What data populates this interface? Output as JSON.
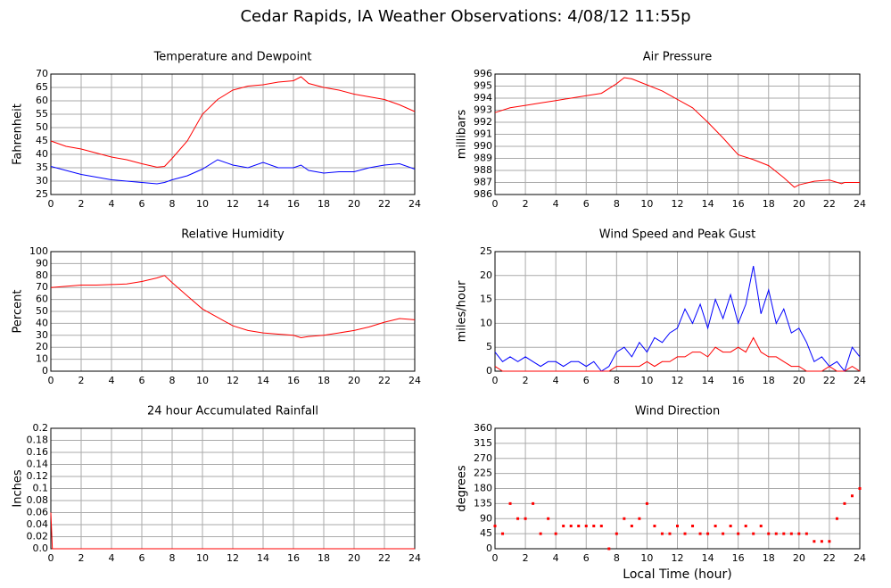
{
  "title": "Cedar Rapids, IA Weather Observations: 4/08/12 11:55p",
  "chart_data": [
    {
      "type": "line",
      "title": "Temperature and Dewpoint",
      "ylabel": "Fahrenheit",
      "x": [
        0,
        1,
        2,
        3,
        4,
        5,
        6,
        7,
        7.5,
        8,
        9,
        10,
        11,
        12,
        13,
        14,
        15,
        16,
        16.5,
        17,
        18,
        19,
        20,
        21,
        22,
        23,
        24
      ],
      "series": [
        {
          "color": "#ff0000",
          "values": [
            45,
            43,
            42,
            40.5,
            39,
            38,
            36.5,
            35.2,
            35.5,
            38.5,
            45,
            55,
            60.5,
            64,
            65.5,
            66,
            67,
            67.5,
            69,
            66.5,
            65,
            64,
            62.5,
            61.5,
            60.5,
            58.5,
            56
          ]
        },
        {
          "color": "#0000ff",
          "values": [
            35.5,
            34,
            32.5,
            31.5,
            30.5,
            30,
            29.5,
            29,
            29.5,
            30.5,
            32,
            34.5,
            38,
            36,
            35,
            37,
            35,
            35,
            36,
            34,
            33,
            33.5,
            33.5,
            35,
            36,
            36.5,
            34.5
          ]
        }
      ],
      "xlim": [
        0,
        24
      ],
      "xticks": [
        0,
        2,
        4,
        6,
        8,
        10,
        12,
        14,
        16,
        18,
        20,
        22,
        24
      ],
      "ylim": [
        25,
        70
      ],
      "yticks": [
        25,
        30,
        35,
        40,
        45,
        50,
        55,
        60,
        65,
        70
      ],
      "grid": true
    },
    {
      "type": "line",
      "title": "Air Pressure",
      "ylabel": "millibars",
      "x": [
        0,
        1,
        2,
        3,
        4,
        5,
        6,
        7,
        8,
        8.5,
        9,
        10,
        11,
        12,
        13,
        14,
        15,
        16,
        17,
        18,
        19,
        19.7,
        20,
        21,
        22,
        22.8,
        23,
        24
      ],
      "series": [
        {
          "color": "#ff0000",
          "values": [
            992.8,
            993.2,
            993.4,
            993.6,
            993.8,
            994.0,
            994.2,
            994.4,
            995.2,
            995.7,
            995.6,
            995.1,
            994.6,
            993.9,
            993.2,
            992.0,
            990.7,
            989.3,
            988.9,
            988.4,
            987.4,
            986.6,
            986.8,
            987.1,
            987.2,
            986.9,
            987.0,
            987.0
          ]
        }
      ],
      "xlim": [
        0,
        24
      ],
      "xticks": [
        0,
        2,
        4,
        6,
        8,
        10,
        12,
        14,
        16,
        18,
        20,
        22,
        24
      ],
      "ylim": [
        986,
        996
      ],
      "yticks": [
        986,
        987,
        988,
        989,
        990,
        991,
        992,
        993,
        994,
        995,
        996
      ],
      "grid": true
    },
    {
      "type": "line",
      "title": "Relative Humidity",
      "ylabel": "Percent",
      "x": [
        0,
        1,
        2,
        3,
        4,
        5,
        6,
        7,
        7.5,
        8,
        9,
        10,
        11,
        12,
        13,
        14,
        15,
        16,
        16.5,
        17,
        18,
        19,
        20,
        21,
        22,
        23,
        24
      ],
      "series": [
        {
          "color": "#ff0000",
          "values": [
            70,
            71,
            72,
            72,
            72.5,
            73,
            75,
            78,
            80,
            74,
            63,
            52,
            45,
            38,
            34,
            32,
            31,
            30,
            28,
            29,
            30,
            32,
            34,
            37,
            41,
            44,
            43
          ]
        }
      ],
      "xlim": [
        0,
        24
      ],
      "xticks": [
        0,
        2,
        4,
        6,
        8,
        10,
        12,
        14,
        16,
        18,
        20,
        22,
        24
      ],
      "ylim": [
        0,
        100
      ],
      "yticks": [
        0,
        10,
        20,
        30,
        40,
        50,
        60,
        70,
        80,
        90,
        100
      ],
      "grid": true
    },
    {
      "type": "line",
      "title": "Wind Speed and Peak Gust",
      "ylabel": "miles/hour",
      "x": [
        0,
        0.5,
        1,
        1.5,
        2,
        2.5,
        3,
        3.5,
        4,
        4.5,
        5,
        5.5,
        6,
        6.5,
        7,
        7.5,
        8,
        8.5,
        9,
        9.5,
        10,
        10.5,
        11,
        11.5,
        12,
        12.5,
        13,
        13.5,
        14,
        14.5,
        15,
        15.5,
        16,
        16.5,
        17,
        17.5,
        18,
        18.5,
        19,
        19.5,
        20,
        20.5,
        21,
        21.5,
        22,
        22.5,
        23,
        23.5,
        24
      ],
      "series": [
        {
          "color": "#0000ff",
          "values": [
            4,
            2,
            3,
            2,
            3,
            2,
            1,
            2,
            2,
            1,
            2,
            2,
            1,
            2,
            0,
            1,
            4,
            5,
            3,
            6,
            4,
            7,
            6,
            8,
            9,
            13,
            10,
            14,
            9,
            15,
            11,
            16,
            10,
            14,
            22,
            12,
            17,
            10,
            13,
            8,
            9,
            6,
            2,
            3,
            1,
            2,
            0,
            5,
            3
          ]
        },
        {
          "color": "#ff0000",
          "values": [
            1,
            0,
            0,
            0,
            0,
            0,
            0,
            0,
            0,
            0,
            0,
            0,
            0,
            0,
            0,
            0,
            1,
            1,
            1,
            1,
            2,
            1,
            2,
            2,
            3,
            3,
            4,
            4,
            3,
            5,
            4,
            4,
            5,
            4,
            7,
            4,
            3,
            3,
            2,
            1,
            1,
            0,
            0,
            0,
            1,
            0,
            0,
            1,
            0
          ]
        }
      ],
      "xlim": [
        0,
        24
      ],
      "xticks": [
        0,
        2,
        4,
        6,
        8,
        10,
        12,
        14,
        16,
        18,
        20,
        22,
        24
      ],
      "ylim": [
        0,
        25
      ],
      "yticks": [
        0,
        5,
        10,
        15,
        20,
        25
      ],
      "grid": true
    },
    {
      "type": "line",
      "title": "24 hour Accumulated Rainfall",
      "ylabel": "Inches",
      "x": [
        0,
        0.1,
        24
      ],
      "series": [
        {
          "color": "#ff0000",
          "values": [
            0.06,
            0,
            0
          ]
        }
      ],
      "xlim": [
        0,
        24
      ],
      "xticks": [
        0,
        2,
        4,
        6,
        8,
        10,
        12,
        14,
        16,
        18,
        20,
        22,
        24
      ],
      "ylim": [
        0,
        0.2
      ],
      "yticks": [
        {
          "value": 0,
          "label": "0.0"
        },
        0.02,
        0.04,
        0.06,
        0.08,
        0.1,
        0.12,
        0.14,
        0.16,
        0.18,
        0.2
      ],
      "grid": true
    },
    {
      "type": "scatter",
      "title": "Wind Direction",
      "ylabel": "degrees",
      "xlabel": "Local Time (hour)",
      "x": [
        0,
        0.5,
        1,
        1.5,
        2,
        2.5,
        3,
        3.5,
        4,
        4.5,
        5,
        5.5,
        6,
        6.5,
        7,
        7.5,
        8,
        8.5,
        9,
        9.5,
        10,
        10.5,
        11,
        11.5,
        12,
        12.5,
        13,
        13.5,
        14,
        14.5,
        15,
        15.5,
        16,
        16.5,
        17,
        17.5,
        18,
        18.5,
        19,
        19.5,
        20,
        20.5,
        21,
        21.5,
        22,
        22.5,
        23,
        23.5,
        24
      ],
      "values": [
        68,
        45,
        135,
        90,
        90,
        135,
        45,
        90,
        45,
        68,
        68,
        68,
        68,
        68,
        68,
        0,
        45,
        90,
        68,
        90,
        135,
        68,
        45,
        45,
        68,
        45,
        68,
        45,
        45,
        68,
        45,
        68,
        45,
        68,
        45,
        68,
        45,
        45,
        45,
        45,
        45,
        45,
        22,
        22,
        22,
        90,
        135,
        158,
        180
      ],
      "color": "#ff0000",
      "xlim": [
        0,
        24
      ],
      "xticks": [
        0,
        2,
        4,
        6,
        8,
        10,
        12,
        14,
        16,
        18,
        20,
        22,
        24
      ],
      "ylim": [
        0,
        360
      ],
      "yticks": [
        0,
        45,
        90,
        135,
        180,
        225,
        270,
        315,
        360
      ],
      "grid": true
    }
  ]
}
